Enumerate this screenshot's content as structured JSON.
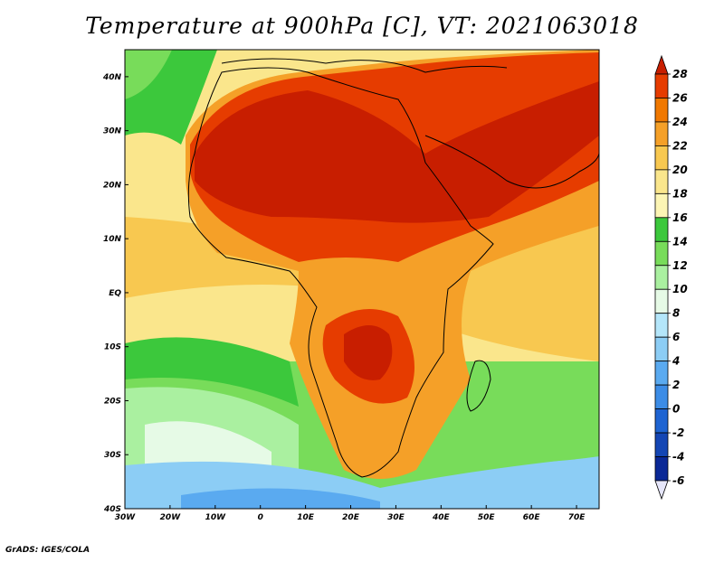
{
  "title": "Temperature at 900hPa [C], VT: 2021063018",
  "credit": "GrADS: IGES/COLA",
  "map": {
    "variable": "Temperature",
    "level": "900hPa",
    "units": "C",
    "valid_time": "2021063018",
    "lon_range": [
      -30,
      75
    ],
    "lat_range": [
      -40,
      45
    ],
    "lon_ticks": [
      {
        "value": -30,
        "label": "30W"
      },
      {
        "value": -20,
        "label": "20W"
      },
      {
        "value": -10,
        "label": "10W"
      },
      {
        "value": 0,
        "label": "0"
      },
      {
        "value": 10,
        "label": "10E"
      },
      {
        "value": 20,
        "label": "20E"
      },
      {
        "value": 30,
        "label": "30E"
      },
      {
        "value": 40,
        "label": "40E"
      },
      {
        "value": 50,
        "label": "50E"
      },
      {
        "value": 60,
        "label": "60E"
      },
      {
        "value": 70,
        "label": "70E"
      }
    ],
    "lat_ticks": [
      {
        "value": 40,
        "label": "40N"
      },
      {
        "value": 30,
        "label": "30N"
      },
      {
        "value": 20,
        "label": "20N"
      },
      {
        "value": 10,
        "label": "10N"
      },
      {
        "value": 0,
        "label": "EQ"
      },
      {
        "value": -10,
        "label": "10S"
      },
      {
        "value": -20,
        "label": "20S"
      },
      {
        "value": -30,
        "label": "30S"
      },
      {
        "value": -40,
        "label": "40S"
      }
    ]
  },
  "colorbar": {
    "levels": [
      {
        "label": "28",
        "color": "#c81e00"
      },
      {
        "label": "26",
        "color": "#e63c00"
      },
      {
        "label": "24",
        "color": "#f07800"
      },
      {
        "label": "22",
        "color": "#f5a028"
      },
      {
        "label": "20",
        "color": "#f8c850"
      },
      {
        "label": "18",
        "color": "#fae68c"
      },
      {
        "label": "16",
        "color": "#fcf5b4"
      },
      {
        "label": "14",
        "color": "#3cc83c"
      },
      {
        "label": "12",
        "color": "#78dc5a"
      },
      {
        "label": "10",
        "color": "#aaf0a0"
      },
      {
        "label": "8",
        "color": "#e6fae6"
      },
      {
        "label": "6",
        "color": "#b4e6fa"
      },
      {
        "label": "4",
        "color": "#8ccdf5"
      },
      {
        "label": "2",
        "color": "#5aaaf0"
      },
      {
        "label": "0",
        "color": "#3c8ce6"
      },
      {
        "label": "-2",
        "color": "#1e64d2"
      },
      {
        "label": "-4",
        "color": "#1446b4"
      },
      {
        "label": "-6",
        "color": "#0a2896"
      }
    ],
    "top_color": "#c81e00",
    "bottom_color": "#0a1464"
  }
}
